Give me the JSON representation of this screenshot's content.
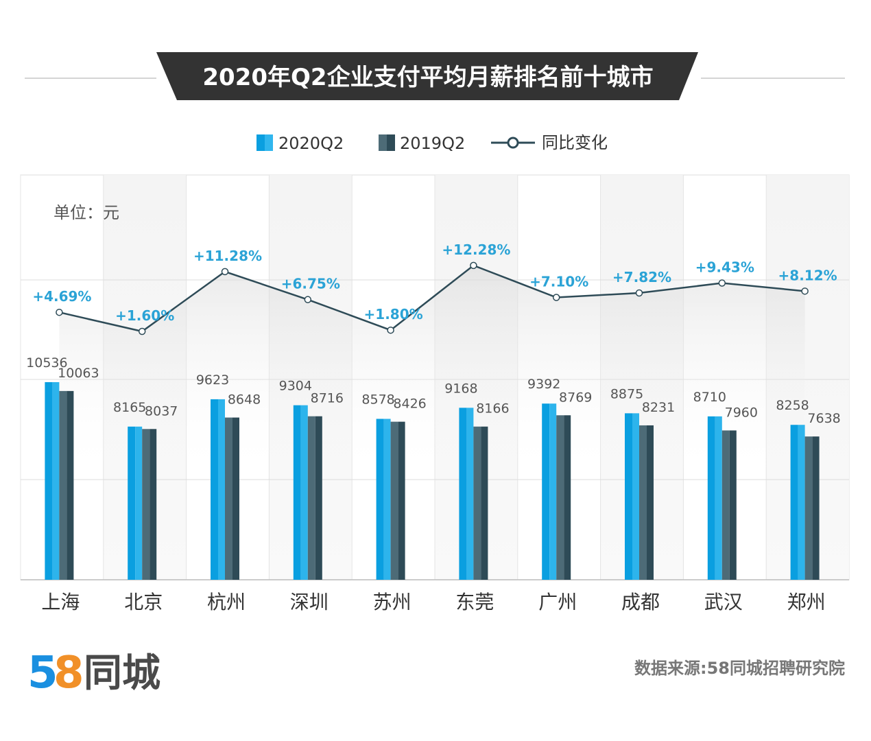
{
  "chart_data": {
    "type": "bar",
    "title": "2020年Q2企业支付平均月薪排名前十城市",
    "unit_label": "单位：元",
    "categories": [
      "上海",
      "北京",
      "杭州",
      "深圳",
      "苏州",
      "东莞",
      "广州",
      "成都",
      "武汉",
      "郑州"
    ],
    "series": [
      {
        "name": "2020Q2",
        "values": [
          10536,
          8165,
          9623,
          9304,
          8578,
          9168,
          9392,
          8875,
          8710,
          8258
        ],
        "color": "#0a9fe0"
      },
      {
        "name": "2019Q2",
        "values": [
          10063,
          8037,
          8648,
          8716,
          8426,
          8166,
          8769,
          8231,
          7960,
          7638
        ],
        "color": "#3b5a66"
      },
      {
        "name": "同比变化",
        "type": "line",
        "values": [
          4.69,
          1.6,
          11.28,
          6.75,
          1.8,
          12.28,
          7.1,
          7.82,
          9.43,
          8.12
        ],
        "labels": [
          "+4.69%",
          "+1.60%",
          "+11.28%",
          "+6.75%",
          "+1.80%",
          "+12.28%",
          "+7.10%",
          "+7.82%",
          "+9.43%",
          "+8.12%"
        ],
        "color": "#2e4b57",
        "label_color": "#2ba3d6"
      }
    ],
    "legend_placement": "top-center",
    "grid": true
  },
  "footer": {
    "logo_text": "58同城",
    "source": "数据来源:58同城招聘研究院"
  }
}
